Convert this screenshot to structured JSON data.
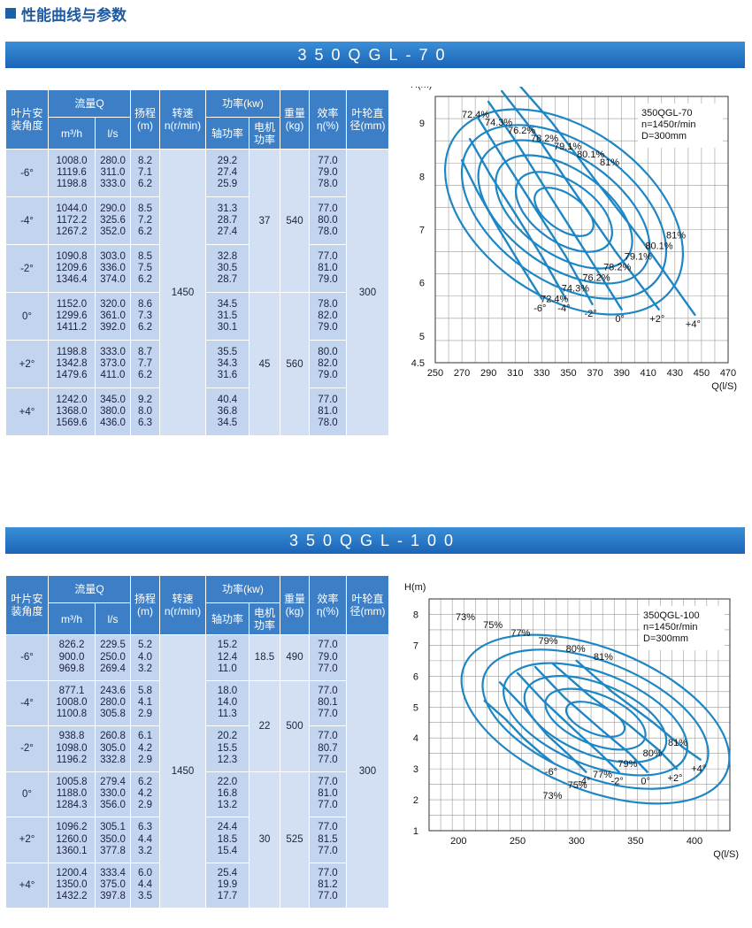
{
  "header": {
    "title": "性能曲线与参数"
  },
  "sections": [
    {
      "model": "350QGL-70",
      "columns": {
        "angle": "叶片安装角度",
        "flow": "流量Q",
        "flow_m3h": "m³/h",
        "flow_ls": "l/s",
        "head": "扬程(m)",
        "speed": "转速n(r/min)",
        "power": "功率(kw)",
        "shaft_power": "轴功率",
        "motor_power": "电机功率",
        "weight": "重量(kg)",
        "eff": "效率η(%)",
        "impeller": "叶轮直径(mm)"
      },
      "speed": "1450",
      "impeller": "300",
      "rows": [
        {
          "angle": "-6°",
          "q_m3h": "1008.0\n1119.6\n1198.8",
          "q_ls": "280.0\n311.0\n333.0",
          "head": "8.2\n7.1\n6.2",
          "shaft": "29.2\n27.4\n25.9",
          "eff": "77.0\n79.0\n78.0"
        },
        {
          "angle": "-4°",
          "q_m3h": "1044.0\n1172.2\n1267.2",
          "q_ls": "290.0\n325.6\n352.0",
          "head": "8.5\n7.2\n6.2",
          "shaft": "31.3\n28.7\n27.4",
          "eff": "77.0\n80.0\n78.0"
        },
        {
          "angle": "-2°",
          "q_m3h": "1090.8\n1209.6\n1346.4",
          "q_ls": "303.0\n336.0\n374.0",
          "head": "8.5\n7.5\n6.2",
          "shaft": "32.8\n30.5\n28.7",
          "eff": "77.0\n81.0\n79.0"
        },
        {
          "angle": "0°",
          "q_m3h": "1152.0\n1299.6\n1411.2",
          "q_ls": "320.0\n361.0\n392.0",
          "head": "8.6\n7.3\n6.2",
          "shaft": "34.5\n31.5\n30.1",
          "eff": "78.0\n82.0\n79.0"
        },
        {
          "angle": "+2°",
          "q_m3h": "1198.8\n1342.8\n1479.6",
          "q_ls": "333.0\n373.0\n411.0",
          "head": "8.7\n7.7\n6.2",
          "shaft": "35.5\n34.3\n31.6",
          "eff": "80.0\n82.0\n79.0"
        },
        {
          "angle": "+4°",
          "q_m3h": "1242.0\n1368.0\n1569.6",
          "q_ls": "345.0\n380.0\n436.0",
          "head": "9.2\n8.0\n6.3",
          "shaft": "40.4\n36.8\n34.5",
          "eff": "77.0\n81.0\n78.0"
        }
      ],
      "groups": [
        {
          "motor": "37",
          "weight": "540"
        },
        {
          "motor": "45",
          "weight": "560"
        }
      ]
    },
    {
      "model": "350QGL-100",
      "columns": {
        "angle": "叶片安装角度",
        "flow": "流量Q",
        "flow_m3h": "m³/h",
        "flow_ls": "l/s",
        "head": "扬程(m)",
        "speed": "转速n(r/min)",
        "power": "功率(kw)",
        "shaft_power": "轴功率",
        "motor_power": "电机功率",
        "weight": "重量(kg)",
        "eff": "效率η(%)",
        "impeller": "叶轮直径(mm)"
      },
      "speed": "1450",
      "impeller": "300",
      "rows": [
        {
          "angle": "-6°",
          "q_m3h": "826.2\n900.0\n969.8",
          "q_ls": "229.5\n250.0\n269.4",
          "head": "5.2\n4.0\n3.2",
          "shaft": "15.2\n12.4\n11.0",
          "eff": "77.0\n79.0\n77.0"
        },
        {
          "angle": "-4°",
          "q_m3h": "877.1\n1008.0\n1100.8",
          "q_ls": "243.6\n280.0\n305.8",
          "head": "5.8\n4.1\n2.9",
          "shaft": "18.0\n14.0\n11.3",
          "eff": "77.0\n80.1\n77.0"
        },
        {
          "angle": "-2°",
          "q_m3h": "938.8\n1098.0\n1196.2",
          "q_ls": "260.8\n305.0\n332.8",
          "head": "6.1\n4.2\n2.9",
          "shaft": "20.2\n15.5\n12.3",
          "eff": "77.0\n80.7\n77.0"
        },
        {
          "angle": "0°",
          "q_m3h": "1005.8\n1188.0\n1284.3",
          "q_ls": "279.4\n330.0\n356.0",
          "head": "6.2\n4.2\n2.9",
          "shaft": "22.0\n16.8\n13.2",
          "eff": "77.0\n81.0\n77.0"
        },
        {
          "angle": "+2°",
          "q_m3h": "1096.2\n1260.0\n1360.1",
          "q_ls": "305.1\n350.0\n377.8",
          "head": "6.3\n4.4\n3.2",
          "shaft": "24.4\n18.5\n15.4",
          "eff": "77.0\n81.5\n77.0"
        },
        {
          "angle": "+4°",
          "q_m3h": "1200.4\n1350.0\n1432.2",
          "q_ls": "333.4\n375.0\n397.8",
          "head": "6.0\n4.4\n3.5",
          "shaft": "25.4\n19.9\n17.7",
          "eff": "77.0\n81.2\n77.0"
        }
      ],
      "groups": [
        {
          "motor": "18.5",
          "weight": "490"
        },
        {
          "motor": "22",
          "weight": "500"
        },
        {
          "motor": "30",
          "weight": "525"
        }
      ]
    }
  ],
  "chart_data": [
    {
      "type": "line",
      "xlabel": "Q(l/S)",
      "ylabel": "H(m)",
      "xlim": [
        250,
        470
      ],
      "ylim": [
        4.5,
        9.5
      ],
      "xticks": [
        250,
        270,
        290,
        310,
        330,
        350,
        370,
        390,
        410,
        430,
        450,
        470
      ],
      "yticks": [
        4.5,
        5,
        6,
        7,
        8,
        9
      ],
      "info": [
        "350QGL-70",
        "n=1450r/min",
        "D=300mm"
      ],
      "series": [
        {
          "name": "-6°",
          "x": [
            270,
            282,
            298,
            315,
            330
          ],
          "y": [
            8.3,
            7.7,
            7.0,
            6.3,
            5.7
          ]
        },
        {
          "name": "-4°",
          "x": [
            276,
            292,
            310,
            330,
            348
          ],
          "y": [
            8.7,
            8.0,
            7.3,
            6.5,
            5.7
          ]
        },
        {
          "name": "-2°",
          "x": [
            282,
            302,
            325,
            348,
            368
          ],
          "y": [
            9.1,
            8.3,
            7.4,
            6.5,
            5.6
          ]
        },
        {
          "name": "0°",
          "x": [
            290,
            312,
            337,
            365,
            390
          ],
          "y": [
            9.4,
            8.6,
            7.6,
            6.5,
            5.5
          ]
        },
        {
          "name": "+2°",
          "x": [
            300,
            325,
            352,
            385,
            418
          ],
          "y": [
            9.6,
            8.8,
            7.8,
            6.6,
            5.5
          ]
        },
        {
          "name": "+4°",
          "x": [
            310,
            338,
            368,
            405,
            445
          ],
          "y": [
            9.8,
            9.0,
            8.0,
            6.8,
            5.4
          ]
        }
      ],
      "efficiency_labels": [
        "72.4%",
        "74.3%",
        "76.2%",
        "78.2%",
        "79.1%",
        "80.1%",
        "81%",
        "81%",
        "80.1%",
        "79.1%",
        "78.2%",
        "76.2%",
        "74.3%",
        "72.4%"
      ],
      "angle_labels": [
        "-6°",
        "-4°",
        "-2°",
        "0°",
        "+2°",
        "+4°"
      ]
    },
    {
      "type": "line",
      "xlabel": "Q(l/S)",
      "ylabel": "H(m)",
      "xlim": [
        175,
        430
      ],
      "ylim": [
        1,
        8.5
      ],
      "xticks": [
        200,
        250,
        300,
        350,
        400
      ],
      "yticks": [
        1,
        2,
        3,
        4,
        5,
        6,
        7,
        8
      ],
      "info": [
        "350QGL-100",
        "n=1450r/min",
        "D=300mm"
      ],
      "series": [
        {
          "name": "-6°",
          "x": [
            222,
            240,
            255,
            270,
            280
          ],
          "y": [
            5.2,
            4.6,
            4.0,
            3.5,
            3.2
          ]
        },
        {
          "name": "-4°",
          "x": [
            235,
            255,
            275,
            295,
            308
          ],
          "y": [
            5.8,
            5.0,
            4.1,
            3.4,
            2.9
          ]
        },
        {
          "name": "-2°",
          "x": [
            250,
            272,
            300,
            320,
            336
          ],
          "y": [
            6.1,
            5.2,
            4.2,
            3.5,
            2.9
          ]
        },
        {
          "name": "0°",
          "x": [
            265,
            290,
            320,
            345,
            360
          ],
          "y": [
            6.3,
            5.3,
            4.3,
            3.5,
            2.9
          ]
        },
        {
          "name": "+2°",
          "x": [
            280,
            310,
            345,
            370,
            385
          ],
          "y": [
            6.4,
            5.4,
            4.4,
            3.6,
            3.0
          ]
        },
        {
          "name": "+4°",
          "x": [
            300,
            330,
            365,
            390,
            405
          ],
          "y": [
            6.5,
            5.5,
            4.5,
            3.7,
            3.3
          ]
        }
      ],
      "efficiency_labels": [
        "73%",
        "75%",
        "77%",
        "79%",
        "80%",
        "81%",
        "81%",
        "80%",
        "79%",
        "77%",
        "75%",
        "73%"
      ],
      "angle_labels": [
        "-6°",
        "-4°",
        "-2°",
        "0°",
        "+2°",
        "+4°"
      ]
    }
  ]
}
